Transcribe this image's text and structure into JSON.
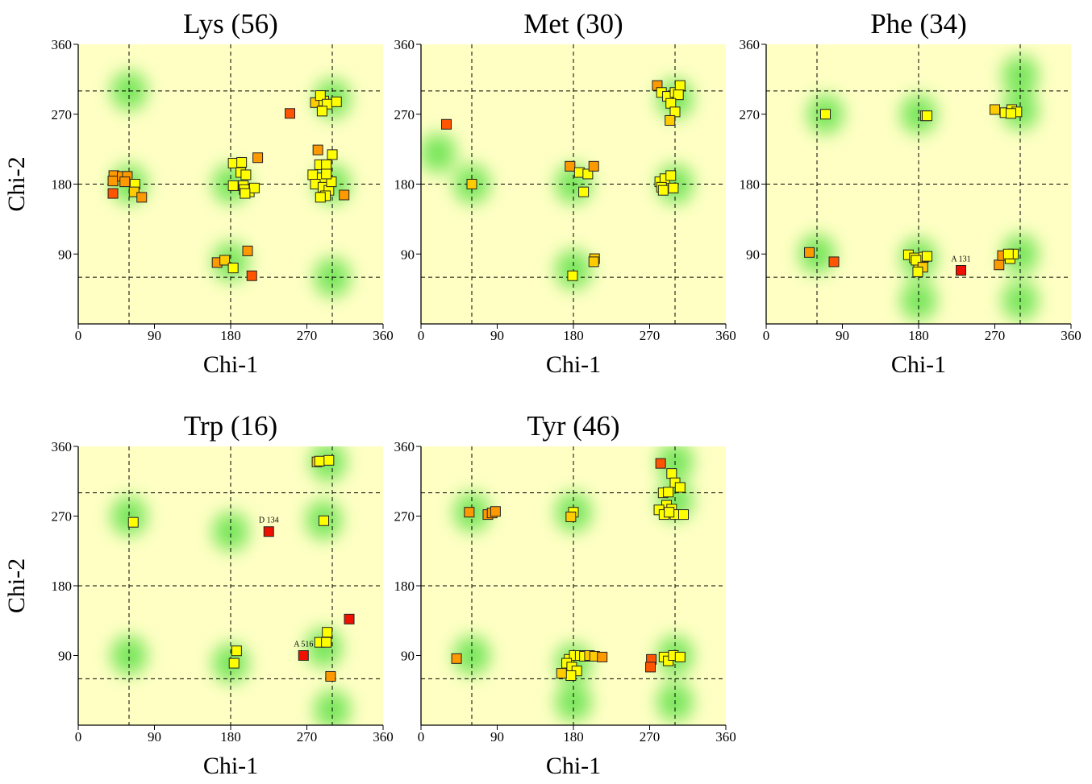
{
  "page_title": "",
  "chart_data": [
    {
      "type": "scatter",
      "title": "Lys (56)",
      "xlabel": "Chi-1",
      "ylabel": "Chi-2",
      "xlim": [
        0,
        360
      ],
      "ylim": [
        0,
        360
      ],
      "xticks": [
        "0",
        "90",
        "180",
        "270",
        "360"
      ],
      "yticks": [
        "90",
        "180",
        "270",
        "360"
      ],
      "ref_lines_x": [
        60,
        180,
        300
      ],
      "ref_lines_y": [
        60,
        180,
        300
      ],
      "density_centers": [
        [
          60,
          180
        ],
        [
          180,
          180
        ],
        [
          300,
          180
        ],
        [
          180,
          80
        ],
        [
          300,
          290
        ],
        [
          60,
          300
        ],
        [
          300,
          60
        ]
      ],
      "points": [
        {
          "x": 42,
          "y": 191,
          "c": "orange"
        },
        {
          "x": 41,
          "y": 184,
          "c": "orange"
        },
        {
          "x": 52,
          "y": 190,
          "c": "orange"
        },
        {
          "x": 58,
          "y": 190,
          "c": "orange"
        },
        {
          "x": 55,
          "y": 183,
          "c": "orange"
        },
        {
          "x": 67,
          "y": 180,
          "c": "yellow"
        },
        {
          "x": 41,
          "y": 168,
          "c": "red-orange"
        },
        {
          "x": 66,
          "y": 170,
          "c": "yellow-orange"
        },
        {
          "x": 75,
          "y": 163,
          "c": "orange"
        },
        {
          "x": 183,
          "y": 207,
          "c": "yellow"
        },
        {
          "x": 193,
          "y": 208,
          "c": "yellow"
        },
        {
          "x": 212,
          "y": 214,
          "c": "orange"
        },
        {
          "x": 192,
          "y": 195,
          "c": "yellow"
        },
        {
          "x": 198,
          "y": 192,
          "c": "yellow"
        },
        {
          "x": 183,
          "y": 178,
          "c": "yellow"
        },
        {
          "x": 195,
          "y": 178,
          "c": "yellow"
        },
        {
          "x": 202,
          "y": 170,
          "c": "yellow"
        },
        {
          "x": 208,
          "y": 175,
          "c": "yellow"
        },
        {
          "x": 196,
          "y": 173,
          "c": "yellow"
        },
        {
          "x": 197,
          "y": 168,
          "c": "yellow"
        },
        {
          "x": 164,
          "y": 79,
          "c": "orange"
        },
        {
          "x": 173,
          "y": 82,
          "c": "yellow-orange"
        },
        {
          "x": 183,
          "y": 72,
          "c": "yellow"
        },
        {
          "x": 200,
          "y": 94,
          "c": "orange"
        },
        {
          "x": 205,
          "y": 62,
          "c": "red-orange"
        },
        {
          "x": 250,
          "y": 271,
          "c": "red-orange"
        },
        {
          "x": 280,
          "y": 285,
          "c": "yellow-orange"
        },
        {
          "x": 290,
          "y": 287,
          "c": "yellow"
        },
        {
          "x": 286,
          "y": 294,
          "c": "yellow"
        },
        {
          "x": 294,
          "y": 283,
          "c": "yellow"
        },
        {
          "x": 288,
          "y": 274,
          "c": "yellow"
        },
        {
          "x": 305,
          "y": 286,
          "c": "yellow"
        },
        {
          "x": 283,
          "y": 224,
          "c": "orange"
        },
        {
          "x": 300,
          "y": 218,
          "c": "yellow"
        },
        {
          "x": 285,
          "y": 205,
          "c": "yellow"
        },
        {
          "x": 293,
          "y": 205,
          "c": "yellow"
        },
        {
          "x": 277,
          "y": 192,
          "c": "yellow"
        },
        {
          "x": 288,
          "y": 188,
          "c": "yellow"
        },
        {
          "x": 280,
          "y": 180,
          "c": "yellow"
        },
        {
          "x": 289,
          "y": 176,
          "c": "yellow"
        },
        {
          "x": 296,
          "y": 172,
          "c": "yellow"
        },
        {
          "x": 292,
          "y": 165,
          "c": "yellow"
        },
        {
          "x": 286,
          "y": 163,
          "c": "yellow"
        },
        {
          "x": 314,
          "y": 166,
          "c": "orange"
        },
        {
          "x": 299,
          "y": 183,
          "c": "yellow"
        },
        {
          "x": 293,
          "y": 193,
          "c": "yellow"
        }
      ],
      "annotations": []
    },
    {
      "type": "scatter",
      "title": "Met (30)",
      "xlabel": "Chi-1",
      "ylabel": "",
      "xlim": [
        0,
        360
      ],
      "ylim": [
        0,
        360
      ],
      "xticks": [
        "0",
        "90",
        "180",
        "270",
        "360"
      ],
      "yticks": [
        "90",
        "180",
        "270",
        "360"
      ],
      "ref_lines_x": [
        60,
        180,
        300
      ],
      "ref_lines_y": [
        60,
        180,
        300
      ],
      "density_centers": [
        [
          60,
          180
        ],
        [
          180,
          180
        ],
        [
          300,
          180
        ],
        [
          300,
          290
        ],
        [
          180,
          70
        ],
        [
          20,
          220
        ]
      ],
      "points": [
        {
          "x": 30,
          "y": 257,
          "c": "red-orange"
        },
        {
          "x": 60,
          "y": 180,
          "c": "yellow-orange"
        },
        {
          "x": 176,
          "y": 203,
          "c": "orange"
        },
        {
          "x": 187,
          "y": 195,
          "c": "yellow"
        },
        {
          "x": 197,
          "y": 193,
          "c": "yellow"
        },
        {
          "x": 204,
          "y": 203,
          "c": "orange"
        },
        {
          "x": 192,
          "y": 170,
          "c": "yellow"
        },
        {
          "x": 179,
          "y": 62,
          "c": "yellow"
        },
        {
          "x": 205,
          "y": 84,
          "c": "yellow-orange"
        },
        {
          "x": 204,
          "y": 80,
          "c": "yellow-orange"
        },
        {
          "x": 279,
          "y": 307,
          "c": "orange"
        },
        {
          "x": 284,
          "y": 298,
          "c": "yellow"
        },
        {
          "x": 291,
          "y": 293,
          "c": "yellow"
        },
        {
          "x": 300,
          "y": 298,
          "c": "yellow"
        },
        {
          "x": 306,
          "y": 307,
          "c": "yellow"
        },
        {
          "x": 304,
          "y": 295,
          "c": "yellow"
        },
        {
          "x": 295,
          "y": 284,
          "c": "yellow"
        },
        {
          "x": 300,
          "y": 273,
          "c": "yellow"
        },
        {
          "x": 294,
          "y": 262,
          "c": "yellow-orange"
        },
        {
          "x": 282,
          "y": 183,
          "c": "yellow"
        },
        {
          "x": 288,
          "y": 187,
          "c": "yellow"
        },
        {
          "x": 295,
          "y": 191,
          "c": "yellow"
        },
        {
          "x": 284,
          "y": 176,
          "c": "yellow"
        },
        {
          "x": 298,
          "y": 175,
          "c": "yellow"
        },
        {
          "x": 286,
          "y": 172,
          "c": "yellow"
        }
      ],
      "annotations": []
    },
    {
      "type": "scatter",
      "title": "Phe (34)",
      "xlabel": "Chi-1",
      "ylabel": "",
      "xlim": [
        0,
        360
      ],
      "ylim": [
        0,
        360
      ],
      "xticks": [
        "0",
        "90",
        "180",
        "270",
        "360"
      ],
      "yticks": [
        "90",
        "180",
        "270",
        "360"
      ],
      "ref_lines_x": [
        60,
        180,
        300
      ],
      "ref_lines_y": [
        60,
        180,
        300
      ],
      "density_centers": [
        [
          70,
          270
        ],
        [
          180,
          270
        ],
        [
          300,
          275
        ],
        [
          300,
          320
        ],
        [
          60,
          90
        ],
        [
          180,
          85
        ],
        [
          300,
          90
        ],
        [
          300,
          30
        ],
        [
          180,
          30
        ]
      ],
      "points": [
        {
          "x": 70,
          "y": 270,
          "c": "yellow"
        },
        {
          "x": 188,
          "y": 268,
          "c": "yellow-orange"
        },
        {
          "x": 190,
          "y": 268,
          "c": "yellow"
        },
        {
          "x": 270,
          "y": 276,
          "c": "yellow-orange"
        },
        {
          "x": 282,
          "y": 272,
          "c": "yellow"
        },
        {
          "x": 290,
          "y": 276,
          "c": "yellow"
        },
        {
          "x": 296,
          "y": 273,
          "c": "yellow"
        },
        {
          "x": 289,
          "y": 271,
          "c": "yellow"
        },
        {
          "x": 51,
          "y": 92,
          "c": "orange"
        },
        {
          "x": 80,
          "y": 80,
          "c": "red-orange"
        },
        {
          "x": 168,
          "y": 89,
          "c": "yellow"
        },
        {
          "x": 175,
          "y": 85,
          "c": "yellow"
        },
        {
          "x": 180,
          "y": 79,
          "c": "yellow"
        },
        {
          "x": 186,
          "y": 86,
          "c": "yellow"
        },
        {
          "x": 190,
          "y": 87,
          "c": "yellow"
        },
        {
          "x": 177,
          "y": 82,
          "c": "yellow"
        },
        {
          "x": 185,
          "y": 73,
          "c": "yellow-orange"
        },
        {
          "x": 179,
          "y": 67,
          "c": "yellow"
        },
        {
          "x": 230,
          "y": 69,
          "c": "red"
        },
        {
          "x": 275,
          "y": 76,
          "c": "orange"
        },
        {
          "x": 279,
          "y": 88,
          "c": "orange"
        },
        {
          "x": 288,
          "y": 84,
          "c": "yellow"
        },
        {
          "x": 292,
          "y": 90,
          "c": "yellow"
        },
        {
          "x": 286,
          "y": 90,
          "c": "yellow"
        }
      ],
      "annotations": [
        {
          "text": "A 131",
          "x": 230,
          "y": 69
        }
      ]
    },
    {
      "type": "scatter",
      "title": "Trp (16)",
      "xlabel": "Chi-1",
      "ylabel": "Chi-2",
      "xlim": [
        0,
        360
      ],
      "ylim": [
        0,
        360
      ],
      "xticks": [
        "0",
        "90",
        "180",
        "270",
        "360"
      ],
      "yticks": [
        "90",
        "180",
        "270",
        "360"
      ],
      "ref_lines_x": [
        60,
        180,
        300
      ],
      "ref_lines_y": [
        60,
        180,
        300
      ],
      "density_centers": [
        [
          60,
          270
        ],
        [
          180,
          250
        ],
        [
          290,
          265
        ],
        [
          295,
          340
        ],
        [
          60,
          90
        ],
        [
          180,
          80
        ],
        [
          290,
          100
        ],
        [
          300,
          20
        ]
      ],
      "points": [
        {
          "x": 65,
          "y": 262,
          "c": "yellow"
        },
        {
          "x": 225,
          "y": 250,
          "c": "red"
        },
        {
          "x": 282,
          "y": 340,
          "c": "yellow-orange"
        },
        {
          "x": 285,
          "y": 341,
          "c": "yellow"
        },
        {
          "x": 296,
          "y": 342,
          "c": "yellow"
        },
        {
          "x": 290,
          "y": 264,
          "c": "yellow"
        },
        {
          "x": 320,
          "y": 137,
          "c": "red"
        },
        {
          "x": 294,
          "y": 120,
          "c": "yellow"
        },
        {
          "x": 285,
          "y": 107,
          "c": "yellow"
        },
        {
          "x": 293,
          "y": 107,
          "c": "yellow"
        },
        {
          "x": 266,
          "y": 90,
          "c": "red"
        },
        {
          "x": 298,
          "y": 63,
          "c": "orange"
        },
        {
          "x": 187,
          "y": 96,
          "c": "yellow"
        },
        {
          "x": 184,
          "y": 80,
          "c": "yellow"
        }
      ],
      "annotations": [
        {
          "text": "D 134",
          "x": 225,
          "y": 250
        },
        {
          "text": "A 516",
          "x": 266,
          "y": 90
        }
      ]
    },
    {
      "type": "scatter",
      "title": "Tyr (46)",
      "xlabel": "Chi-1",
      "ylabel": "",
      "xlim": [
        0,
        360
      ],
      "ylim": [
        0,
        360
      ],
      "xticks": [
        "0",
        "90",
        "180",
        "270",
        "360"
      ],
      "yticks": [
        "90",
        "180",
        "270",
        "360"
      ],
      "ref_lines_x": [
        60,
        180,
        300
      ],
      "ref_lines_y": [
        60,
        180,
        300
      ],
      "density_centers": [
        [
          60,
          275
        ],
        [
          180,
          275
        ],
        [
          300,
          290
        ],
        [
          300,
          340
        ],
        [
          60,
          90
        ],
        [
          180,
          80
        ],
        [
          300,
          90
        ],
        [
          180,
          30
        ],
        [
          300,
          30
        ]
      ],
      "points": [
        {
          "x": 57,
          "y": 275,
          "c": "orange"
        },
        {
          "x": 79,
          "y": 272,
          "c": "orange"
        },
        {
          "x": 84,
          "y": 274,
          "c": "orange"
        },
        {
          "x": 88,
          "y": 276,
          "c": "orange"
        },
        {
          "x": 180,
          "y": 275,
          "c": "yellow"
        },
        {
          "x": 177,
          "y": 269,
          "c": "yellow-orange"
        },
        {
          "x": 283,
          "y": 338,
          "c": "red-orange"
        },
        {
          "x": 296,
          "y": 325,
          "c": "yellow"
        },
        {
          "x": 300,
          "y": 313,
          "c": "yellow"
        },
        {
          "x": 306,
          "y": 307,
          "c": "yellow"
        },
        {
          "x": 286,
          "y": 300,
          "c": "yellow"
        },
        {
          "x": 292,
          "y": 301,
          "c": "yellow"
        },
        {
          "x": 290,
          "y": 284,
          "c": "yellow"
        },
        {
          "x": 296,
          "y": 279,
          "c": "yellow"
        },
        {
          "x": 281,
          "y": 278,
          "c": "yellow"
        },
        {
          "x": 287,
          "y": 272,
          "c": "yellow"
        },
        {
          "x": 300,
          "y": 272,
          "c": "yellow"
        },
        {
          "x": 310,
          "y": 272,
          "c": "yellow"
        },
        {
          "x": 293,
          "y": 275,
          "c": "yellow"
        },
        {
          "x": 42,
          "y": 86,
          "c": "orange"
        },
        {
          "x": 175,
          "y": 85,
          "c": "yellow"
        },
        {
          "x": 181,
          "y": 90,
          "c": "yellow"
        },
        {
          "x": 188,
          "y": 90,
          "c": "yellow"
        },
        {
          "x": 193,
          "y": 89,
          "c": "yellow"
        },
        {
          "x": 199,
          "y": 90,
          "c": "yellow-orange"
        },
        {
          "x": 205,
          "y": 89,
          "c": "yellow-orange"
        },
        {
          "x": 214,
          "y": 88,
          "c": "orange"
        },
        {
          "x": 172,
          "y": 80,
          "c": "yellow"
        },
        {
          "x": 178,
          "y": 75,
          "c": "yellow"
        },
        {
          "x": 184,
          "y": 70,
          "c": "yellow"
        },
        {
          "x": 177,
          "y": 64,
          "c": "yellow"
        },
        {
          "x": 166,
          "y": 67,
          "c": "yellow-orange"
        },
        {
          "x": 272,
          "y": 85,
          "c": "red-orange"
        },
        {
          "x": 271,
          "y": 75,
          "c": "red-orange"
        },
        {
          "x": 287,
          "y": 88,
          "c": "yellow"
        },
        {
          "x": 292,
          "y": 83,
          "c": "yellow"
        },
        {
          "x": 298,
          "y": 90,
          "c": "yellow"
        },
        {
          "x": 306,
          "y": 88,
          "c": "yellow"
        }
      ],
      "annotations": []
    }
  ],
  "colors": {
    "background": "#ffffc4",
    "density": "#44dd33",
    "yellow": "#ffff00",
    "yellow-orange": "#ffcc00",
    "orange": "#ff9900",
    "red-orange": "#ff5500",
    "red": "#ee1100"
  }
}
